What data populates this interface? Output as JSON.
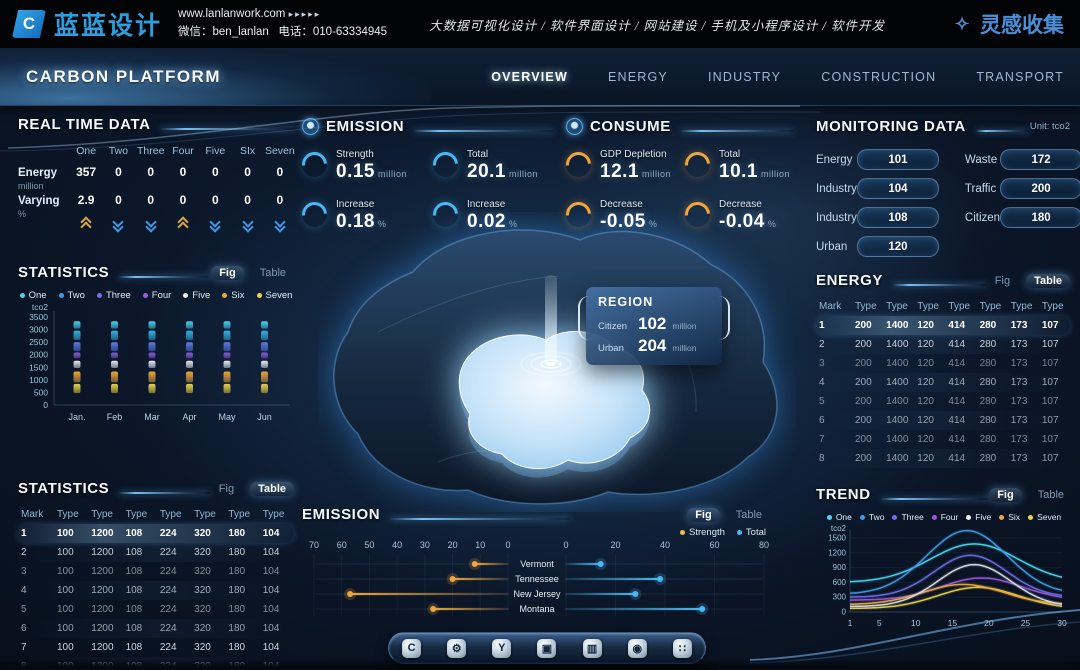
{
  "header": {
    "logo_text": "蓝蓝设计",
    "logo_glyph": "C",
    "website": "www.lanlanwork.com",
    "website_arrows": "▸▸▸▸▸",
    "wechat": "微信：ben_lanlan",
    "phone": "电话：010-63334945",
    "services": "大数据可视化设计 / 软件界面设计 / 网站建设 / 手机及小程序设计 / 软件开发",
    "collect": "灵感收集",
    "collect_icon_glyph": "✧"
  },
  "navbar": {
    "title": "CARBON PLATFORM",
    "tabs": [
      {
        "label": "OVERVIEW",
        "active": true
      },
      {
        "label": "ENERGY",
        "active": false
      },
      {
        "label": "INDUSTRY",
        "active": false
      },
      {
        "label": "CONSTRUCTION",
        "active": false
      },
      {
        "label": "TRANSPORT",
        "active": false
      }
    ]
  },
  "realtime": {
    "title": "REAL TIME DATA",
    "columns": [
      "One",
      "Two",
      "Three",
      "Four",
      "Five",
      "SIx",
      "Seven"
    ],
    "rows": [
      {
        "label": "Energy",
        "unit": "million",
        "values": [
          "357",
          "0",
          "0",
          "0",
          "0",
          "0",
          "0"
        ]
      },
      {
        "label": "Varying",
        "unit": "%",
        "values": [
          "2.9",
          "0",
          "0",
          "0",
          "0",
          "0",
          "0"
        ]
      }
    ],
    "trend_arrows": [
      "up",
      "down",
      "down",
      "up",
      "down",
      "down",
      "down"
    ],
    "arrow_colors": {
      "up": "#d9aa3e",
      "down": "#3f9ae8"
    }
  },
  "emission_stats": {
    "title": "EMISSION",
    "accent": "#49b9f5",
    "items": [
      {
        "label": "Strength",
        "value": "0.15",
        "unit": "million"
      },
      {
        "label": "Total",
        "value": "20.1",
        "unit": "million"
      },
      {
        "label": "Increase",
        "value": "0.18",
        "unit": "%"
      },
      {
        "label": "Increase",
        "value": "0.02",
        "unit": "%"
      }
    ]
  },
  "consume_stats": {
    "title": "CONSUME",
    "accent": "#f0a63c",
    "items": [
      {
        "label": "GDP Depletion",
        "value": "12.1",
        "unit": "million"
      },
      {
        "label": "Total",
        "value": "10.1",
        "unit": "million"
      },
      {
        "label": "Decrease",
        "value": "-0.05",
        "unit": "%"
      },
      {
        "label": "Decrease",
        "value": "-0.04",
        "unit": "%"
      }
    ]
  },
  "monitoring": {
    "title": "MONITORING DATA",
    "unit_note": "Unit: tco2",
    "left": [
      {
        "label": "Energy",
        "value": "101"
      },
      {
        "label": "Industry",
        "value": "104"
      },
      {
        "label": "Industry",
        "value": "108"
      },
      {
        "label": "Urban",
        "value": "120"
      }
    ],
    "right": [
      {
        "label": "Waste",
        "value": "172"
      },
      {
        "label": "Traffic",
        "value": "200"
      },
      {
        "label": "Citizen",
        "value": "180"
      }
    ]
  },
  "region_tooltip": {
    "title": "REGION",
    "rows": [
      {
        "label": "Citizen",
        "value": "102",
        "unit": "million"
      },
      {
        "label": "Urban",
        "value": "204",
        "unit": "million"
      }
    ]
  },
  "series_legend": [
    {
      "label": "One",
      "color": "#49d6f6"
    },
    {
      "label": "Two",
      "color": "#3f9be8"
    },
    {
      "label": "Three",
      "color": "#6e6ee8"
    },
    {
      "label": "Four",
      "color": "#9b59e0"
    },
    {
      "label": "Five",
      "color": "#eef3f8"
    },
    {
      "label": "Six",
      "color": "#f0a63c"
    },
    {
      "label": "Seven",
      "color": "#ecd44a"
    }
  ],
  "statistics_fig": {
    "title": "STATISTICS",
    "fig_label": "Fig",
    "table_label": "Table",
    "active": "fig",
    "chart_data": {
      "type": "segmented-column",
      "ylabel": "tco2",
      "yticks": [
        0,
        500,
        1000,
        1500,
        2000,
        2500,
        3000,
        3500
      ],
      "categories": [
        "Jan.",
        "Feb",
        "Mar",
        "Apr",
        "May",
        "Jun"
      ],
      "segments": [
        {
          "name": "One",
          "color": "#49d6f6",
          "from": 3040,
          "to": 3330
        },
        {
          "name": "Two",
          "color": "#35b3e8",
          "from": 2580,
          "to": 2960
        },
        {
          "name": "Three",
          "color": "#5f7ae8",
          "from": 2140,
          "to": 2500
        },
        {
          "name": "Four",
          "color": "#8e5ce0",
          "from": 1860,
          "to": 2090
        },
        {
          "name": "Five",
          "color": "#e8eef5",
          "from": 1470,
          "to": 1760
        },
        {
          "name": "Six",
          "color": "#f0a63c",
          "from": 900,
          "to": 1330
        },
        {
          "name": "Seven",
          "color": "#ecd44a",
          "from": 470,
          "to": 840
        }
      ]
    }
  },
  "energy_table": {
    "title": "ENERGY",
    "fig_label": "Fig",
    "table_label": "Table",
    "active": "table",
    "headers": [
      "Mark",
      "Type",
      "Type",
      "Type",
      "Type",
      "Type",
      "Type",
      "Type"
    ],
    "rows": [
      [
        "1",
        "200",
        "1400",
        "120",
        "414",
        "280",
        "173",
        "107"
      ],
      [
        "2",
        "200",
        "1400",
        "120",
        "414",
        "280",
        "173",
        "107"
      ],
      [
        "3",
        "200",
        "1400",
        "120",
        "414",
        "280",
        "173",
        "107"
      ],
      [
        "4",
        "200",
        "1400",
        "120",
        "414",
        "280",
        "173",
        "107"
      ],
      [
        "5",
        "200",
        "1400",
        "120",
        "414",
        "280",
        "173",
        "107"
      ],
      [
        "6",
        "200",
        "1400",
        "120",
        "414",
        "280",
        "173",
        "107"
      ],
      [
        "7",
        "200",
        "1400",
        "120",
        "414",
        "280",
        "173",
        "107"
      ],
      [
        "8",
        "200",
        "1400",
        "120",
        "414",
        "280",
        "173",
        "107"
      ]
    ]
  },
  "statistics_table": {
    "title": "STATISTICS",
    "fig_label": "Fig",
    "table_label": "Table",
    "active": "table",
    "headers": [
      "Mark",
      "Type",
      "Type",
      "Type",
      "Type",
      "Type",
      "Type",
      "Type"
    ],
    "rows": [
      [
        "1",
        "100",
        "1200",
        "108",
        "224",
        "320",
        "180",
        "104"
      ],
      [
        "2",
        "100",
        "1200",
        "108",
        "224",
        "320",
        "180",
        "104"
      ],
      [
        "3",
        "100",
        "1200",
        "108",
        "224",
        "320",
        "180",
        "104"
      ],
      [
        "4",
        "100",
        "1200",
        "108",
        "224",
        "320",
        "180",
        "104"
      ],
      [
        "5",
        "100",
        "1200",
        "108",
        "224",
        "320",
        "180",
        "104"
      ],
      [
        "6",
        "100",
        "1200",
        "108",
        "224",
        "320",
        "180",
        "104"
      ],
      [
        "7",
        "100",
        "1200",
        "108",
        "224",
        "320",
        "180",
        "104"
      ],
      [
        "8",
        "100",
        "1200",
        "108",
        "224",
        "320",
        "180",
        "104"
      ]
    ]
  },
  "emission_chart": {
    "title": "EMISSION",
    "fig_label": "Fig",
    "table_label": "Table",
    "active": "fig",
    "legend": [
      {
        "label": "Strength",
        "color": "#f0c23c"
      },
      {
        "label": "Total",
        "color": "#49b9f5"
      }
    ],
    "chart_data": {
      "type": "diverging-lollipop",
      "left_axis_ticks": [
        70,
        60,
        50,
        40,
        30,
        20,
        10,
        0
      ],
      "right_axis_ticks": [
        0,
        20,
        40,
        60,
        80
      ],
      "categories": [
        "Vermont",
        "Tennessee",
        "New Jersey",
        "Montana"
      ],
      "series": [
        {
          "name": "Strength",
          "side": "left",
          "color": "#f0a63c",
          "values": [
            12,
            20,
            57,
            27
          ]
        },
        {
          "name": "Total",
          "side": "right",
          "color": "#49b9f5",
          "values": [
            14,
            38,
            28,
            55
          ]
        }
      ]
    }
  },
  "trend": {
    "title": "TREND",
    "fig_label": "Fig",
    "table_label": "Table",
    "active": "fig",
    "chart_data": {
      "type": "line",
      "ylabel": "tco2",
      "yticks": [
        0,
        300,
        600,
        900,
        1200,
        1500
      ],
      "xticks": [
        1,
        5,
        10,
        15,
        20,
        25,
        30
      ],
      "xrange": [
        1,
        30
      ],
      "ylim": [
        0,
        1500
      ],
      "series": [
        {
          "name": "Four",
          "color": "#9b59e0",
          "base": 240,
          "peak": 690,
          "peak_x": 19,
          "sigma": 5.5
        },
        {
          "name": "Seven",
          "color": "#ecd44a",
          "base": 70,
          "peak": 500,
          "peak_x": 18.5,
          "sigma": 5.5
        },
        {
          "name": "Six",
          "color": "#f0a63c",
          "base": 150,
          "peak": 560,
          "peak_x": 16.5,
          "sigma": 5.5
        },
        {
          "name": "Five",
          "color": "#d8e0e8",
          "base": 110,
          "peak": 960,
          "peak_x": 18,
          "sigma": 5
        },
        {
          "name": "Three",
          "color": "#6e6ee8",
          "base": 300,
          "peak": 1150,
          "peak_x": 17.5,
          "sigma": 5
        },
        {
          "name": "One",
          "color": "#49d6f6",
          "base": 600,
          "peak": 1380,
          "peak_x": 18,
          "sigma": 6
        },
        {
          "name": "Two",
          "color": "#3f9be8",
          "base": 360,
          "peak": 1650,
          "peak_x": 17,
          "sigma": 5.5
        }
      ]
    }
  },
  "dock": {
    "icons": [
      {
        "name": "carbon-hex-icon",
        "glyph": "C"
      },
      {
        "name": "gear-icon",
        "glyph": "⚙"
      },
      {
        "name": "y-badge-icon",
        "glyph": "Y"
      },
      {
        "name": "charging-station-icon",
        "glyph": "▣"
      },
      {
        "name": "chart-board-icon",
        "glyph": "▥"
      },
      {
        "name": "nut-icon",
        "glyph": "◉"
      },
      {
        "name": "apps-icon",
        "glyph": "∷"
      }
    ]
  }
}
